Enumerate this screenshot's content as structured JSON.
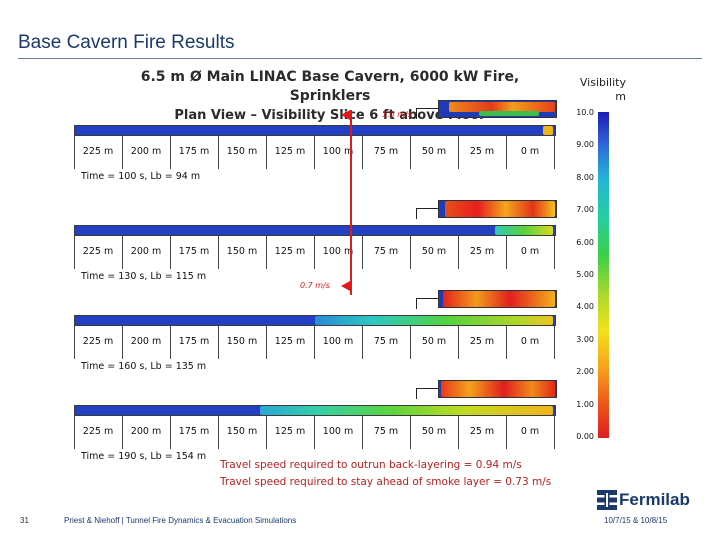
{
  "slide": {
    "title": "Base Cavern Fire Results"
  },
  "figure": {
    "title_line1": "6.5 m Ø Main LINAC Base Cavern, 6000 kW Fire, Sprinklers",
    "title_line2": "Plan View – Visibility Slice 6 ft above Floor"
  },
  "legend": {
    "title": "Visibility",
    "unit": "m",
    "ticks": [
      "10.0",
      "9.00",
      "8.00",
      "7.00",
      "6.00",
      "5.00",
      "4.00",
      "3.00",
      "2.00",
      "1.00",
      "0.00"
    ]
  },
  "distances": [
    "225 m",
    "200 m",
    "175 m",
    "150 m",
    "125 m",
    "100 m",
    "75 m",
    "50 m",
    "25 m",
    "0 m"
  ],
  "panels": [
    {
      "time_label": "Time = 100 s, Lb = 94 m"
    },
    {
      "time_label": "Time = 130 s, Lb = 115 m"
    },
    {
      "time_label": "Time = 160 s, Lb = 135 m"
    },
    {
      "time_label": "Time = 190 s, Lb = 154 m"
    }
  ],
  "arrows": [
    {
      "label": "1.0 m/s"
    },
    {
      "label": "0.7 m/s"
    }
  ],
  "travel": {
    "line1": "Travel speed required to outrun back-layering = 0.94  m/s",
    "line2": "Travel speed required to stay ahead of smoke layer = 0.73 m/s"
  },
  "footer": {
    "page": "31",
    "text": "Priest & Niehoff | Tunnel Fire Dynamics & Evacuation Simulations",
    "date": "10/7/15 & 10/8/15",
    "logo": "Fermilab"
  },
  "colors": {
    "title": "#1b3a6b",
    "arrow": "#e01919",
    "travel_text": "#b52222",
    "tunnel": "#2340c4"
  }
}
